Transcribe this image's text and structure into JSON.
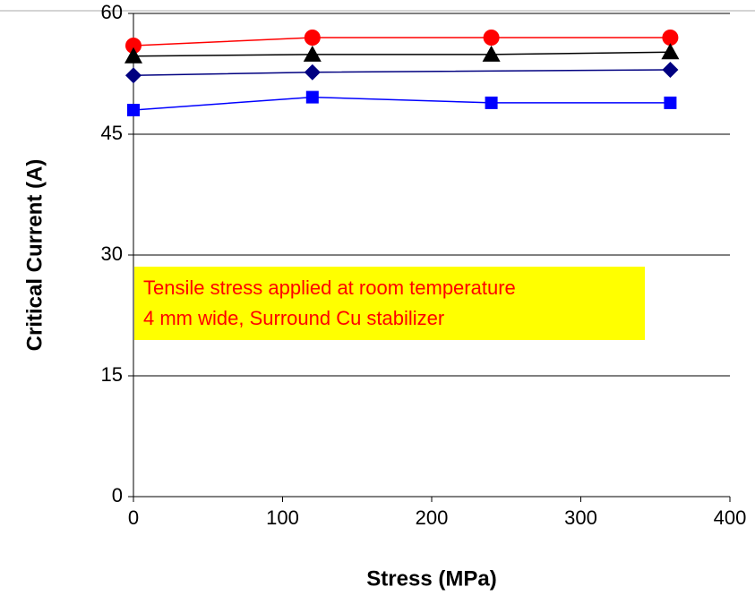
{
  "chart_data": {
    "type": "line",
    "x_label": "Stress (MPa)",
    "y_label": "Critical Current (A)",
    "annotation": [
      "Tensile stress applied at room temperature",
      "4 mm wide, Surround Cu stabilizer"
    ],
    "xlim": [
      0,
      400
    ],
    "xticks": [
      0,
      100,
      200,
      300,
      400
    ],
    "ylim": [
      0,
      60
    ],
    "yticks": [
      0,
      15,
      30,
      45,
      60
    ],
    "grid": true,
    "series": [
      {
        "color": "#ff0000",
        "marker": "circle",
        "x": [
          0,
          120,
          240,
          360
        ],
        "values": [
          56.0,
          57.0,
          57.0,
          57.0
        ]
      },
      {
        "color": "#000000",
        "marker": "triangle",
        "x": [
          0,
          120,
          240,
          360
        ],
        "values": [
          54.7,
          54.9,
          54.9,
          55.2
        ]
      },
      {
        "color": "#000080",
        "marker": "diamond",
        "x": [
          0,
          120,
          360
        ],
        "values": [
          52.3,
          52.7,
          53.0
        ]
      },
      {
        "color": "#0000ff",
        "marker": "square",
        "x": [
          0,
          120,
          240,
          360
        ],
        "values": [
          48.0,
          49.6,
          48.9,
          48.9
        ]
      }
    ]
  }
}
